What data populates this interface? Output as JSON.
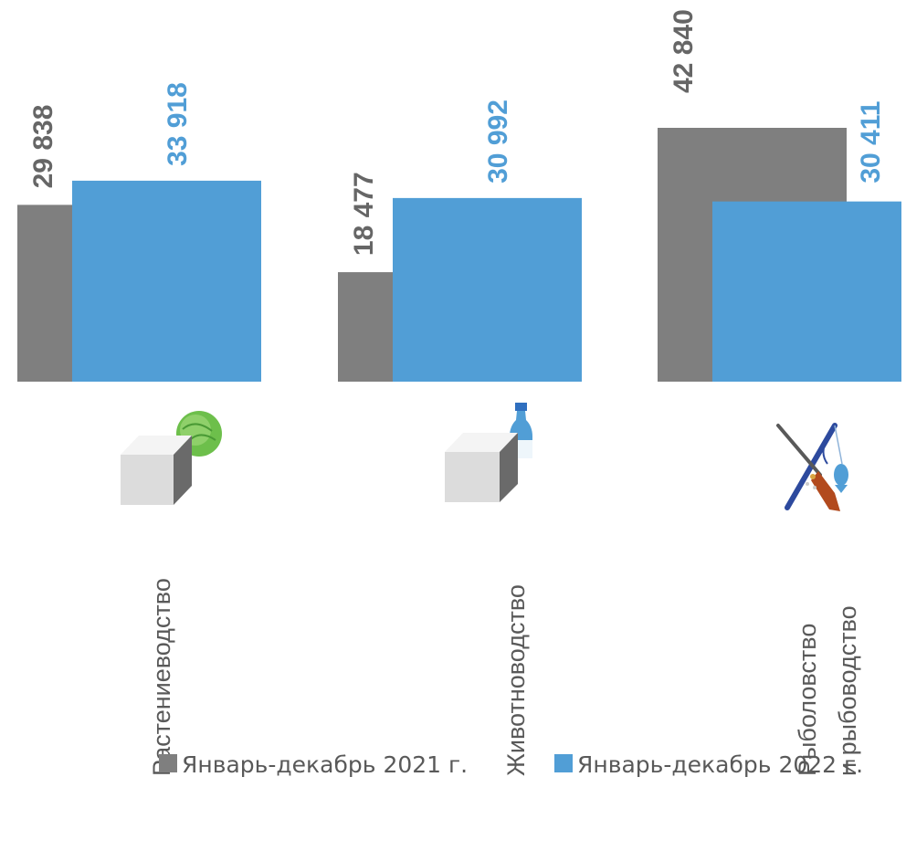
{
  "chart_data": {
    "type": "bar",
    "categories": [
      [
        "Растениеводство"
      ],
      [
        "Животноводство"
      ],
      [
        "Рыболовство",
        "и рыбоводство"
      ]
    ],
    "series": [
      {
        "name": "Январь-декабрь 2021 г.",
        "color": "#7f7f7f",
        "label_color": "#666666",
        "values": [
          29838,
          18477,
          42840
        ],
        "labels": [
          "29 838",
          "18 477",
          "42 840"
        ]
      },
      {
        "name": "Январь-декабрь 2022 г.",
        "color": "#519ed6",
        "label_color": "#519ed6",
        "values": [
          33918,
          30992,
          30411
        ],
        "labels": [
          "33 918",
          "30 992",
          "30 411"
        ]
      }
    ],
    "category_icons": [
      "cube-with-cabbage",
      "cube-with-milk-bottle",
      "fishing-rod-and-rifle"
    ],
    "ylim": [
      0,
      48000
    ],
    "grid": false,
    "legend_position": "bottom"
  }
}
